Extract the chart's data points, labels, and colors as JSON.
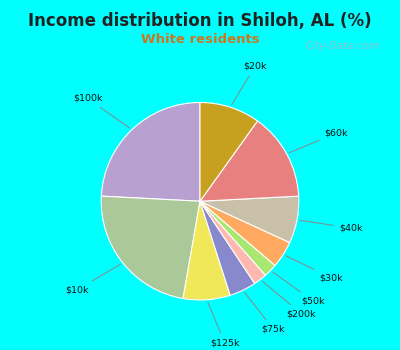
{
  "title": "Income distribution in Shiloh, AL (%)",
  "subtitle": "White residents",
  "title_color": "#222222",
  "subtitle_color": "#cc7722",
  "bg_color": "#00ffff",
  "chart_bg_top": "#e8f0e8",
  "chart_bg_bottom": "#d8ede0",
  "watermark": "City-Data.com",
  "labels": [
    "$100k",
    "$10k",
    "$125k",
    "$75k",
    "$200k",
    "$50k",
    "$30k",
    "$40k",
    "$60k",
    "$20k"
  ],
  "values": [
    22,
    21,
    7,
    4,
    2,
    2,
    4,
    7,
    13,
    9
  ],
  "colors": [
    "#b8a0d0",
    "#aac898",
    "#f0e858",
    "#8888cc",
    "#ffb8b0",
    "#a8e870",
    "#ffaa60",
    "#c8c0a8",
    "#e88080",
    "#c8a020"
  ],
  "startangle": 90,
  "figsize": [
    4.0,
    3.5
  ],
  "dpi": 100
}
